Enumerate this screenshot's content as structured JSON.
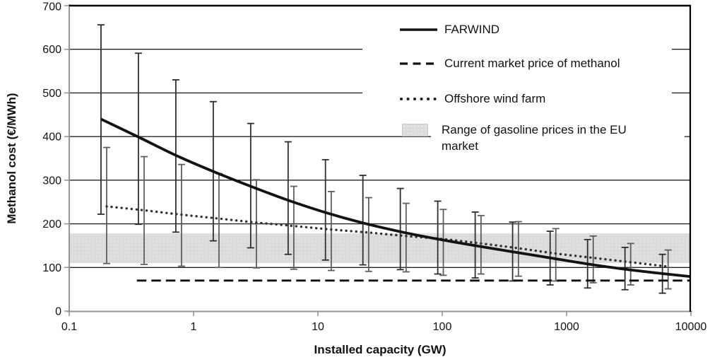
{
  "chart_data": {
    "type": "line",
    "title": "",
    "xlabel": "Installed capacity (GW)",
    "ylabel": "Methanol cost (€/MWh)",
    "x_scale": "log",
    "xlim": [
      0.1,
      10000
    ],
    "ylim": [
      0,
      700
    ],
    "grid": "horizontal",
    "legend_position": "top-right-inside",
    "x_ticks": {
      "values": [
        0.1,
        1,
        10,
        100,
        1000,
        10000
      ],
      "labels": [
        "0.1",
        "1",
        "10",
        "100",
        "1000",
        "10000"
      ]
    },
    "y_ticks": {
      "values": [
        0,
        100,
        200,
        300,
        400,
        500,
        600,
        700
      ],
      "labels": [
        "0",
        "100",
        "200",
        "300",
        "400",
        "500",
        "600",
        "700"
      ]
    },
    "legend": [
      "FARWIND",
      "Current market price of methanol",
      "Offshore wind farm",
      "Range of gasoline prices in the EU market"
    ],
    "series": [
      {
        "name": "FARWIND",
        "style": "solid",
        "color": "#131313",
        "error_color": "#2e2e2e",
        "points_note": "[capacity_GW, cost, err_low, err_high]",
        "points": [
          [
            0.18,
            440,
            222,
            656
          ],
          [
            0.36,
            399,
            199,
            591
          ],
          [
            0.72,
            357,
            181,
            530
          ],
          [
            1.44,
            320,
            161,
            480
          ],
          [
            2.88,
            286,
            145,
            430
          ],
          [
            5.76,
            254,
            130,
            388
          ],
          [
            11.5,
            226,
            117,
            347
          ],
          [
            23,
            202,
            106,
            311
          ],
          [
            46,
            182,
            95,
            281
          ],
          [
            92,
            165,
            85,
            252
          ],
          [
            184,
            150,
            76,
            227
          ],
          [
            368,
            136,
            69,
            204
          ],
          [
            737,
            122,
            60,
            183
          ],
          [
            1475,
            108,
            53,
            164
          ],
          [
            2949,
            96,
            49,
            146
          ],
          [
            5898,
            86,
            41,
            130
          ],
          [
            10000,
            79
          ]
        ]
      },
      {
        "name": "Current market price of methanol",
        "style": "dashed",
        "color": "#111111",
        "value": 70,
        "x_start": 0.35,
        "x_end": 10000
      },
      {
        "name": "Offshore wind farm",
        "style": "dotted",
        "color": "#333333",
        "error_color": "#5e5e5e",
        "points": [
          [
            0.2,
            240,
            109,
            375
          ],
          [
            0.4,
            231,
            107,
            354
          ],
          [
            0.8,
            221,
            103,
            336
          ],
          [
            1.6,
            212,
            100,
            315
          ],
          [
            3.2,
            203,
            99,
            301
          ],
          [
            6.4,
            195,
            96,
            286
          ],
          [
            12.8,
            187,
            93,
            274
          ],
          [
            25.6,
            180,
            91,
            260
          ],
          [
            51.2,
            172,
            90,
            247
          ],
          [
            102,
            165,
            82,
            233
          ],
          [
            205,
            155,
            85,
            219
          ],
          [
            410,
            144,
            80,
            205
          ],
          [
            819,
            132,
            69,
            189
          ],
          [
            1638,
            122,
            65,
            172
          ],
          [
            3277,
            112,
            60,
            155
          ],
          [
            6554,
            102,
            51,
            140
          ]
        ]
      }
    ],
    "band": {
      "label": "Range of gasoline prices in the EU market",
      "y_min": 110,
      "y_max": 178,
      "color": "#dbdbdb"
    },
    "colors": {
      "gridline": "#262626",
      "axis": "#969696",
      "border": "#000000"
    }
  }
}
